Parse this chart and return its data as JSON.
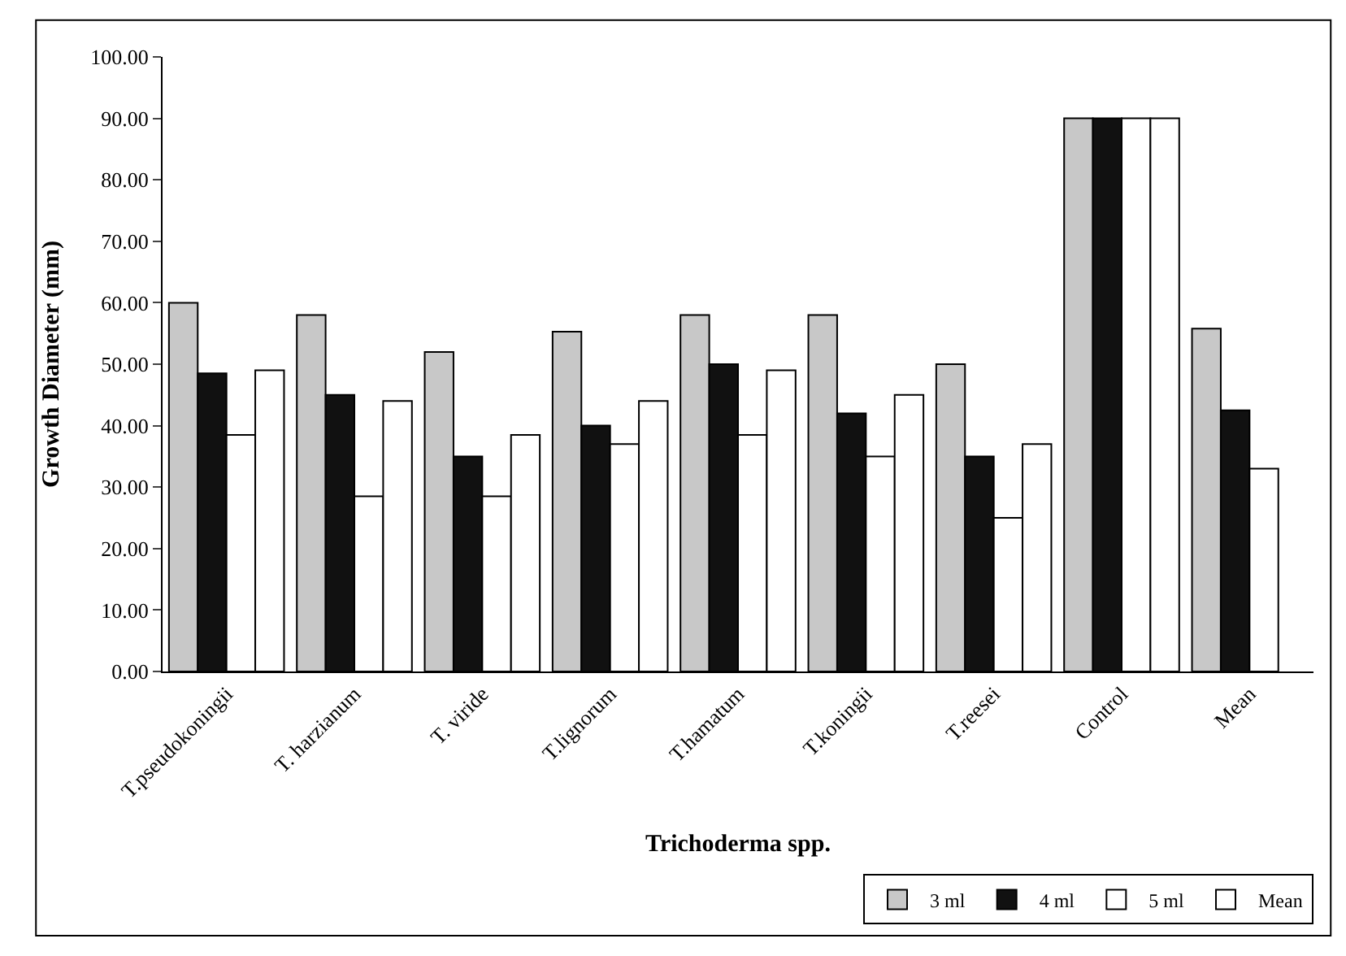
{
  "chart_data": {
    "type": "bar",
    "xlabel": "Trichoderma spp.",
    "ylabel": "Growth Diameter (mm)",
    "categories": [
      "T.pseudokoningii",
      "T. harzianum",
      "T. viride",
      "T.lignorum",
      "T.hamatum",
      "T.koningii",
      "T.reesei",
      "Control",
      "Mean"
    ],
    "series": [
      {
        "name": "3 ml",
        "color": "#c8c8c8",
        "values": [
          60,
          58,
          52,
          55.3,
          58,
          58,
          50,
          90,
          55.8
        ]
      },
      {
        "name": "4 ml",
        "color": "#111111",
        "values": [
          48.5,
          45,
          35,
          40,
          50,
          42,
          35,
          90,
          42.5
        ]
      },
      {
        "name": "5 ml",
        "color": "#ffffff",
        "values": [
          38.5,
          28.5,
          28.5,
          37,
          38.5,
          35,
          25,
          90,
          33
        ]
      },
      {
        "name": "Mean",
        "color": "#ffffff",
        "values": [
          49,
          44,
          38.5,
          44,
          49,
          45,
          37,
          90,
          null
        ]
      }
    ],
    "ylim": [
      0,
      100
    ],
    "yticks": [
      {
        "value": 0,
        "label": "0.00"
      },
      {
        "value": 10,
        "label": "10.00"
      },
      {
        "value": 20,
        "label": "20.00"
      },
      {
        "value": 30,
        "label": "30.00"
      },
      {
        "value": 40,
        "label": "40.00"
      },
      {
        "value": 50,
        "label": "50.00"
      },
      {
        "value": 60,
        "label": "60.00"
      },
      {
        "value": 70,
        "label": "70.00"
      },
      {
        "value": 80,
        "label": "80.00"
      },
      {
        "value": 90,
        "label": "90.00"
      },
      {
        "value": 100,
        "label": "100.00"
      }
    ],
    "legend": "bottom right"
  }
}
